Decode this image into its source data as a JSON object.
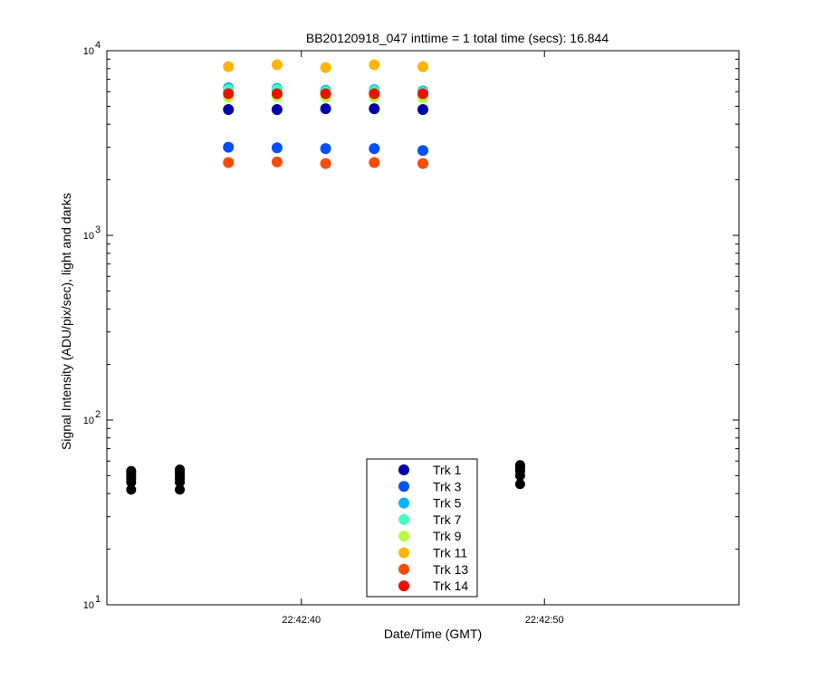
{
  "chart_data": {
    "type": "scatter",
    "title": "BB20120918_047 inttime = 1 total time (secs): 16.844",
    "xlabel": "Date/Time (GMT)",
    "ylabel": "Signal Intensity (ADU/pix/sec), light and darks",
    "y_scale": "log",
    "ylim": [
      10,
      10000
    ],
    "xlim": [
      "22:42:32",
      "22:42:58"
    ],
    "x_ticks": [
      "22:42:40",
      "22:42:50"
    ],
    "y_ticks": [
      {
        "base": "10",
        "exp": "1"
      },
      {
        "base": "10",
        "exp": "2"
      },
      {
        "base": "10",
        "exp": "3"
      },
      {
        "base": "10",
        "exp": "4"
      }
    ],
    "grid": false,
    "legend_position": "bottom-center",
    "series": [
      {
        "name": "Trk 1",
        "color": "#0000aa",
        "x": [
          "22:42:37",
          "22:42:39",
          "22:42:41",
          "22:42:43",
          "22:42:45"
        ],
        "y": [
          4800,
          4800,
          4850,
          4850,
          4800
        ]
      },
      {
        "name": "Trk 3",
        "color": "#0050ff",
        "x": [
          "22:42:37",
          "22:42:39",
          "22:42:41",
          "22:42:43",
          "22:42:45"
        ],
        "y": [
          3000,
          2980,
          2950,
          2950,
          2880
        ]
      },
      {
        "name": "Trk 5",
        "color": "#00b4ff",
        "x": [
          "22:42:37",
          "22:42:39",
          "22:42:41",
          "22:42:43",
          "22:42:45"
        ],
        "y": [
          6300,
          6250,
          6100,
          6150,
          6050
        ]
      },
      {
        "name": "Trk 7",
        "color": "#40ffc0",
        "x": [
          "22:42:37",
          "22:42:39",
          "22:42:41",
          "22:42:43",
          "22:42:45"
        ],
        "y": [
          6150,
          6150,
          6000,
          6050,
          5950
        ]
      },
      {
        "name": "Trk 9",
        "color": "#b4ff40",
        "x": [
          "22:42:37",
          "22:42:39",
          "22:42:41",
          "22:42:43",
          "22:42:45"
        ],
        "y": [
          5600,
          5650,
          5600,
          5600,
          5550
        ]
      },
      {
        "name": "Trk 11",
        "color": "#ffb400",
        "x": [
          "22:42:37",
          "22:42:39",
          "22:42:41",
          "22:42:43",
          "22:42:45"
        ],
        "y": [
          8200,
          8400,
          8100,
          8400,
          8200
        ]
      },
      {
        "name": "Trk 13",
        "color": "#ff4a00",
        "x": [
          "22:42:37",
          "22:42:39",
          "22:42:41",
          "22:42:43",
          "22:42:45"
        ],
        "y": [
          2480,
          2500,
          2450,
          2480,
          2450
        ]
      },
      {
        "name": "Trk 14",
        "color": "#ee1100",
        "x": [
          "22:42:37",
          "22:42:39",
          "22:42:41",
          "22:42:43",
          "22:42:45"
        ],
        "y": [
          5850,
          5850,
          5850,
          5850,
          5850
        ]
      }
    ],
    "darks": {
      "color": "#000000",
      "x": [
        "22:42:33",
        "22:42:35",
        "22:42:47",
        "22:42:49"
      ],
      "y": [
        [
          42,
          46,
          48,
          50,
          52,
          53
        ],
        [
          42,
          46,
          48,
          50,
          52,
          54
        ],
        [
          45,
          50,
          52,
          54,
          55,
          56
        ],
        [
          45,
          50,
          53,
          55,
          56,
          57
        ]
      ]
    }
  }
}
